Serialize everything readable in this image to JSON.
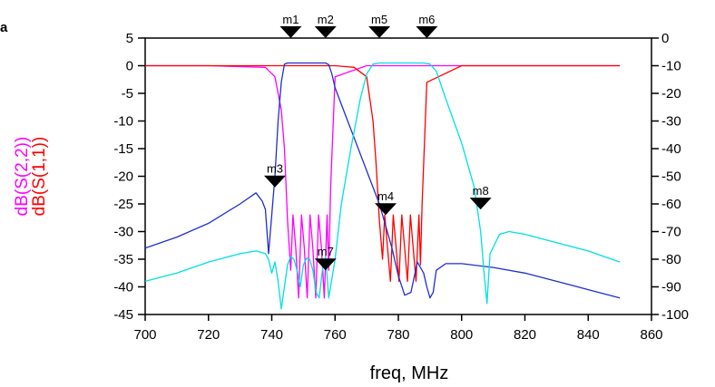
{
  "corner_label": "a",
  "chart_data": {
    "type": "line",
    "xlabel": "freq, MHz",
    "xlim": [
      700,
      860
    ],
    "x_ticks": [
      700,
      720,
      740,
      760,
      780,
      800,
      820,
      840,
      860
    ],
    "ylabels_left": [
      {
        "text": "dB(S(2,2))",
        "color": "#ff00ff"
      },
      {
        "text": "dB(S(1,1))",
        "color": "#ff0000"
      }
    ],
    "ylim_left": [
      -45,
      5
    ],
    "y_ticks_left": [
      5,
      0,
      -5,
      -10,
      -15,
      -20,
      -25,
      -30,
      -35,
      -40,
      -45
    ],
    "ylim_right": [
      -100,
      0
    ],
    "y_ticks_right": [
      0,
      -10,
      -20,
      -30,
      -40,
      -50,
      -60,
      -70,
      -80,
      -90,
      -100
    ],
    "grid": false,
    "series": [
      {
        "color": "#ff00ff",
        "axis": "left",
        "x": [
          700,
          720,
          738,
          741,
          743,
          744,
          745,
          746,
          746.7,
          747.6,
          748.5,
          749.4,
          750.3,
          751.2,
          752.1,
          753,
          753.9,
          754.8,
          755.7,
          756.6,
          757.5,
          758,
          758.6,
          760,
          770,
          800,
          850
        ],
        "y": [
          0,
          0,
          -0.3,
          -2,
          -8,
          -15,
          -28,
          -37,
          -27,
          -33,
          -42,
          -27,
          -33,
          -42,
          -27,
          -33,
          -42,
          -27,
          -33,
          -42,
          -27,
          -37,
          -22,
          -2,
          0,
          0,
          0
        ]
      },
      {
        "color": "#ff0000",
        "axis": "left",
        "x": [
          700,
          760,
          766,
          770,
          772,
          773,
          774,
          775,
          775.7,
          776.6,
          777.5,
          778.4,
          779.3,
          780.2,
          781.1,
          782,
          782.9,
          783.8,
          784.7,
          785.6,
          786.5,
          787,
          787.5,
          789,
          800,
          850
        ],
        "y": [
          0,
          0,
          -0.3,
          -2,
          -10,
          -18,
          -28,
          -35,
          -27,
          -33,
          -39,
          -27,
          -33,
          -39,
          -27,
          -33,
          -39,
          -27,
          -33,
          -39,
          -27,
          -36,
          -25,
          -3,
          0,
          0
        ]
      },
      {
        "color": "#1f2fd0",
        "axis": "left",
        "x": [
          700,
          710,
          720,
          730,
          735,
          737,
          738,
          739,
          740,
          741,
          742,
          743,
          744,
          745,
          750,
          755,
          757,
          758,
          759,
          760,
          763,
          766,
          770,
          774,
          776,
          778,
          780,
          782,
          784,
          786,
          788,
          789,
          790,
          791,
          792,
          795,
          800,
          810,
          820,
          830,
          840,
          850
        ],
        "y": [
          -33,
          -31,
          -28.5,
          -25,
          -23,
          -24.5,
          -26,
          -34,
          -27,
          -20,
          -10,
          -3,
          0.3,
          0.5,
          0.5,
          0.5,
          0.5,
          0.2,
          -1.5,
          -4,
          -8.5,
          -13,
          -19,
          -25,
          -29,
          -33,
          -38,
          -41.5,
          -41,
          -35.5,
          -37.5,
          -40,
          -42,
          -41,
          -37,
          -35.8,
          -35.8,
          -36.5,
          -37.5,
          -39,
          -40.5,
          -42
        ]
      },
      {
        "color": "#00e0e0",
        "axis": "left",
        "x": [
          700,
          710,
          720,
          730,
          735,
          737,
          738,
          739,
          740,
          741,
          742,
          743,
          744,
          745,
          746,
          747,
          748,
          749,
          750,
          751,
          752,
          753,
          754,
          755,
          756,
          757,
          758,
          760,
          762,
          765,
          768,
          770,
          772,
          774,
          776,
          780,
          785,
          788,
          790,
          792,
          795,
          800,
          804,
          806,
          807,
          808,
          809,
          812,
          815,
          820,
          830,
          840,
          850
        ],
        "y": [
          -39,
          -37.5,
          -35.5,
          -34,
          -33.5,
          -33.8,
          -34,
          -35,
          -37.5,
          -35.5,
          -39,
          -44,
          -40,
          -36,
          -34.5,
          -35,
          -37,
          -40,
          -36,
          -34.8,
          -35,
          -37,
          -41,
          -42,
          -37,
          -34.5,
          -42,
          -35,
          -25,
          -15,
          -6,
          -1.5,
          0.3,
          0.5,
          0.5,
          0.5,
          0.5,
          0.5,
          0.3,
          -1,
          -6,
          -14,
          -22,
          -30,
          -37,
          -43,
          -34,
          -30.5,
          -30,
          -30.5,
          -32,
          -33.5,
          -35.5
        ]
      }
    ],
    "markers": [
      {
        "label": "m1",
        "x": 746,
        "y": 5
      },
      {
        "label": "m2",
        "x": 757,
        "y": 5
      },
      {
        "label": "m5",
        "x": 774,
        "y": 5
      },
      {
        "label": "m6",
        "x": 789,
        "y": 5
      },
      {
        "label": "m3",
        "x": 741,
        "y": -22
      },
      {
        "label": "m4",
        "x": 776,
        "y": -27
      },
      {
        "label": "m7",
        "x": 757,
        "y": -37
      },
      {
        "label": "m8",
        "x": 806,
        "y": -26
      }
    ]
  }
}
